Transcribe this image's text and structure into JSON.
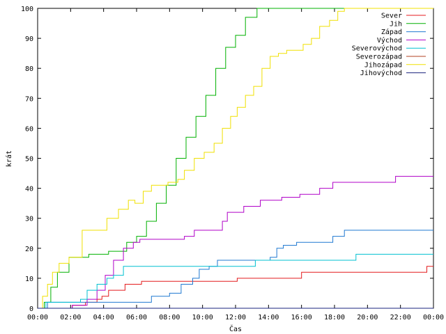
{
  "chart_data": {
    "type": "line",
    "title": "",
    "xlabel": "Čas",
    "ylabel": "krát",
    "xlim": [
      0,
      24
    ],
    "ylim": [
      0,
      100
    ],
    "x_ticks": [
      0,
      2,
      4,
      6,
      8,
      10,
      12,
      14,
      16,
      18,
      20,
      22,
      24
    ],
    "x_tick_labels": [
      "00:00",
      "02:00",
      "04:00",
      "06:00",
      "08:00",
      "10:00",
      "12:00",
      "14:00",
      "16:00",
      "18:00",
      "20:00",
      "22:00",
      "00:00"
    ],
    "y_ticks": [
      0,
      10,
      20,
      30,
      40,
      50,
      60,
      70,
      80,
      90,
      100
    ],
    "grid": false,
    "legend_position": "top-right",
    "series": [
      {
        "name": "Sever",
        "color": "#e41a1c",
        "step": true,
        "x": [
          0,
          1.9,
          2.1,
          2.9,
          3.6,
          3.9,
          4.3,
          5.3,
          6.3,
          12.1,
          16.0,
          23.6,
          24
        ],
        "y": [
          0,
          0,
          1,
          2,
          3,
          4,
          6,
          8,
          9,
          10,
          12,
          14,
          14
        ]
      },
      {
        "name": "Jih",
        "color": "#00b000",
        "step": true,
        "x": [
          0,
          0.4,
          0.8,
          1.2,
          1.9,
          3.1,
          4.3,
          5.4,
          6.0,
          6.6,
          7.2,
          7.8,
          8.4,
          9.0,
          9.6,
          10.2,
          10.8,
          11.4,
          12.0,
          12.6,
          13.3,
          24
        ],
        "y": [
          0,
          2,
          7,
          12,
          17,
          18,
          19,
          22,
          24,
          29,
          35,
          41,
          50,
          57,
          64,
          71,
          80,
          87,
          91,
          97,
          100,
          100
        ]
      },
      {
        "name": "Západ",
        "color": "#1f78d1",
        "step": true,
        "x": [
          0,
          0.6,
          6.9,
          8.0,
          8.7,
          9.4,
          9.8,
          10.4,
          10.9,
          14.1,
          14.5,
          14.9,
          15.7,
          17.9,
          18.6,
          24
        ],
        "y": [
          0,
          2,
          4,
          5,
          8,
          10,
          13,
          14,
          16,
          17,
          20,
          21,
          22,
          24,
          26,
          26
        ]
      },
      {
        "name": "Východ",
        "color": "#b000c8",
        "step": true,
        "x": [
          0,
          2.1,
          3.0,
          3.6,
          4.1,
          4.6,
          5.2,
          5.8,
          6.2,
          8.9,
          9.5,
          11.2,
          11.5,
          12.5,
          13.5,
          14.8,
          15.9,
          17.1,
          17.9,
          18.6,
          21.7,
          24
        ],
        "y": [
          0,
          1,
          3,
          6,
          11,
          16,
          20,
          22,
          23,
          24,
          26,
          29,
          32,
          34,
          36,
          37,
          38,
          40,
          42,
          42,
          44,
          44
        ]
      },
      {
        "name": "Severovýchod",
        "color": "#00c0d0",
        "step": true,
        "x": [
          0,
          0.5,
          2.6,
          3.0,
          3.6,
          4.2,
          4.6,
          5.2,
          13.2,
          19.3,
          24
        ],
        "y": [
          0,
          2,
          3,
          6,
          8,
          10,
          11,
          14,
          16,
          18,
          18
        ]
      },
      {
        "name": "Severozápad",
        "color": "#b04020",
        "step": true,
        "x": [
          0,
          24
        ],
        "y": [
          0,
          0
        ]
      },
      {
        "name": "Jihozápad",
        "color": "#f0e000",
        "step": true,
        "x": [
          0,
          0.3,
          0.6,
          0.9,
          1.3,
          1.9,
          2.7,
          4.2,
          4.9,
          5.5,
          5.9,
          6.4,
          6.9,
          7.3,
          7.9,
          8.5,
          8.9,
          9.5,
          10.1,
          10.7,
          11.2,
          11.7,
          12.1,
          12.6,
          13.1,
          13.6,
          14.1,
          14.6,
          15.1,
          16.1,
          16.6,
          17.1,
          17.7,
          18.2,
          18.6,
          19.0,
          24
        ],
        "y": [
          0,
          4,
          8,
          12,
          15,
          17,
          26,
          30,
          33,
          36,
          35,
          39,
          41,
          41,
          42,
          43,
          46,
          50,
          52,
          55,
          60,
          64,
          67,
          71,
          74,
          80,
          84,
          85,
          86,
          88,
          90,
          94,
          96,
          99,
          100,
          100,
          100
        ]
      },
      {
        "name": "Jihovýchod",
        "color": "#1a237e",
        "step": true,
        "x": [
          0,
          24
        ],
        "y": [
          0,
          0
        ]
      }
    ]
  }
}
